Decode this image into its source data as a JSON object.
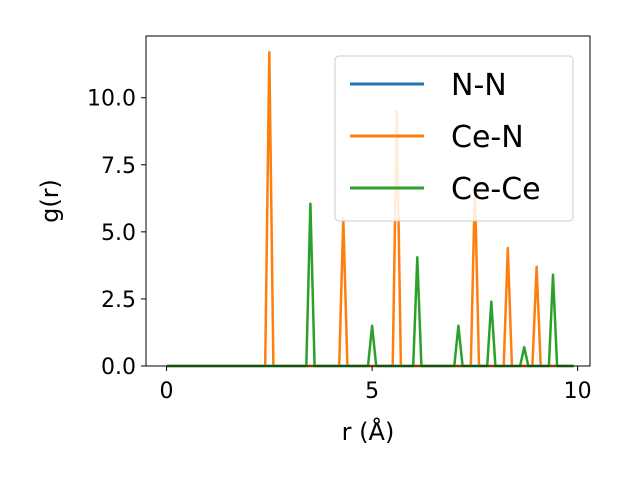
{
  "chart_data": {
    "type": "line",
    "title": "",
    "xlabel": "r (Å)",
    "ylabel": "g(r)",
    "xlim": [
      -0.5,
      10.3
    ],
    "ylim": [
      0,
      12.3
    ],
    "xticks": [
      0,
      5,
      10
    ],
    "xtick_labels": [
      "0",
      "5",
      "10"
    ],
    "yticks": [
      0,
      2.5,
      5,
      7.5,
      10
    ],
    "ytick_labels": [
      "0.0",
      "2.5",
      "5.0",
      "7.5",
      "10.0"
    ],
    "grid": false,
    "legend_position": "top-right",
    "series": [
      {
        "name": "N-N",
        "color": "#1f77b4",
        "x": [
          0,
          9.9
        ],
        "y": [
          0,
          0
        ]
      },
      {
        "name": "Ce-N",
        "color": "#ff7f0e",
        "x": [
          0,
          2.4,
          2.5,
          2.6,
          4.2,
          4.3,
          4.4,
          5.5,
          5.6,
          5.7,
          7.4,
          7.5,
          7.6,
          8.2,
          8.3,
          8.4,
          8.9,
          9.0,
          9.1,
          9.9
        ],
        "y": [
          0,
          0,
          11.7,
          0,
          0,
          5.5,
          0,
          0,
          9.5,
          0,
          0,
          6.7,
          0,
          0,
          4.4,
          0,
          0,
          3.7,
          0,
          0
        ]
      },
      {
        "name": "Ce-Ce",
        "color": "#2ca02c",
        "x": [
          0,
          3.4,
          3.5,
          3.6,
          4.9,
          5.0,
          5.1,
          6.0,
          6.1,
          6.2,
          7.0,
          7.1,
          7.2,
          7.8,
          7.9,
          8.0,
          8.6,
          8.7,
          8.8,
          9.3,
          9.4,
          9.5,
          9.9
        ],
        "y": [
          0,
          0,
          6.05,
          0,
          0,
          1.5,
          0,
          0,
          4.05,
          0,
          0,
          1.5,
          0,
          0,
          2.4,
          0,
          0,
          0.7,
          0,
          0,
          3.4,
          0,
          0
        ]
      }
    ]
  }
}
